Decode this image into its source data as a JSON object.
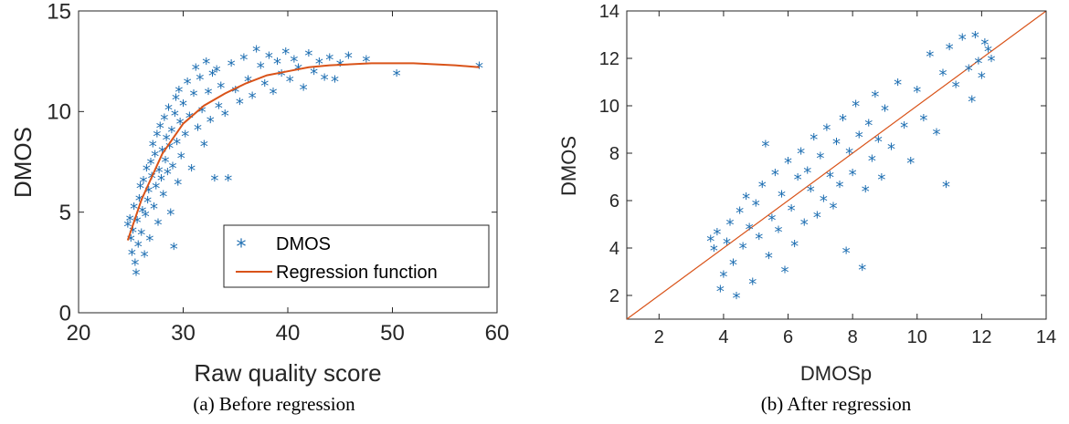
{
  "colors": {
    "marker": "#1f6fb2",
    "curve": "#d95319",
    "axis": "#262626"
  },
  "chart_data": [
    {
      "type": "scatter",
      "caption": "(a) Before regression",
      "xlabel": "Raw quality score",
      "ylabel": "DMOS",
      "xlim": [
        20,
        60
      ],
      "ylim": [
        0,
        15
      ],
      "xticks": [
        "20",
        "30",
        "40",
        "50",
        "60"
      ],
      "yticks": [
        "0",
        "5",
        "10",
        "15"
      ],
      "legend_position": "bottom-right",
      "legend": [
        {
          "label": "DMOS",
          "kind": "marker"
        },
        {
          "label": "Regression function",
          "kind": "line"
        }
      ],
      "series": [
        {
          "name": "DMOS",
          "marker": "asterisk",
          "points": [
            [
              24.7,
              4.3
            ],
            [
              24.9,
              4.6
            ],
            [
              25.0,
              3.6
            ],
            [
              25.1,
              2.9
            ],
            [
              25.2,
              4.0
            ],
            [
              25.3,
              5.2
            ],
            [
              25.4,
              2.4
            ],
            [
              25.5,
              1.9
            ],
            [
              25.6,
              4.5
            ],
            [
              25.7,
              3.3
            ],
            [
              25.8,
              5.6
            ],
            [
              25.9,
              6.2
            ],
            [
              26.0,
              3.9
            ],
            [
              26.1,
              5.0
            ],
            [
              26.2,
              6.5
            ],
            [
              26.3,
              2.8
            ],
            [
              26.4,
              4.8
            ],
            [
              26.5,
              7.1
            ],
            [
              26.6,
              5.5
            ],
            [
              26.7,
              6.0
            ],
            [
              26.8,
              3.6
            ],
            [
              26.9,
              7.4
            ],
            [
              27.0,
              6.7
            ],
            [
              27.1,
              8.3
            ],
            [
              27.2,
              5.2
            ],
            [
              27.3,
              7.8
            ],
            [
              27.4,
              6.2
            ],
            [
              27.5,
              8.8
            ],
            [
              27.6,
              4.4
            ],
            [
              27.7,
              7.0
            ],
            [
              27.8,
              9.2
            ],
            [
              27.9,
              6.6
            ],
            [
              28.0,
              8.0
            ],
            [
              28.1,
              5.8
            ],
            [
              28.2,
              9.6
            ],
            [
              28.3,
              7.5
            ],
            [
              28.4,
              8.6
            ],
            [
              28.5,
              6.9
            ],
            [
              28.6,
              10.1
            ],
            [
              28.7,
              8.2
            ],
            [
              28.8,
              4.9
            ],
            [
              28.9,
              9.0
            ],
            [
              29.0,
              7.2
            ],
            [
              29.1,
              3.2
            ],
            [
              29.2,
              9.8
            ],
            [
              29.3,
              10.6
            ],
            [
              29.4,
              8.4
            ],
            [
              29.5,
              6.4
            ],
            [
              29.6,
              11.0
            ],
            [
              29.7,
              9.4
            ],
            [
              29.8,
              7.7
            ],
            [
              30.0,
              10.3
            ],
            [
              30.2,
              8.8
            ],
            [
              30.4,
              11.4
            ],
            [
              30.6,
              9.7
            ],
            [
              30.8,
              7.1
            ],
            [
              31.0,
              10.8
            ],
            [
              31.2,
              12.1
            ],
            [
              31.4,
              9.1
            ],
            [
              31.6,
              11.6
            ],
            [
              31.8,
              10.0
            ],
            [
              32.0,
              8.3
            ],
            [
              32.2,
              12.4
            ],
            [
              32.4,
              10.9
            ],
            [
              32.6,
              9.5
            ],
            [
              32.8,
              11.8
            ],
            [
              33.0,
              6.6
            ],
            [
              33.2,
              12.0
            ],
            [
              33.4,
              10.2
            ],
            [
              33.6,
              11.2
            ],
            [
              34.0,
              9.8
            ],
            [
              34.3,
              6.6
            ],
            [
              34.6,
              12.3
            ],
            [
              35.0,
              11.0
            ],
            [
              35.4,
              10.4
            ],
            [
              35.8,
              12.6
            ],
            [
              36.2,
              11.5
            ],
            [
              36.6,
              10.7
            ],
            [
              37.0,
              13.0
            ],
            [
              37.4,
              12.2
            ],
            [
              37.8,
              11.3
            ],
            [
              38.2,
              12.7
            ],
            [
              38.6,
              10.9
            ],
            [
              39.0,
              12.4
            ],
            [
              39.4,
              11.8
            ],
            [
              39.8,
              12.9
            ],
            [
              40.2,
              11.5
            ],
            [
              40.6,
              12.5
            ],
            [
              41.0,
              12.1
            ],
            [
              41.5,
              11.1
            ],
            [
              42.0,
              12.8
            ],
            [
              42.5,
              11.9
            ],
            [
              43.0,
              12.4
            ],
            [
              43.5,
              11.6
            ],
            [
              44.0,
              12.6
            ],
            [
              44.5,
              11.5
            ],
            [
              45.0,
              12.3
            ],
            [
              45.8,
              12.7
            ],
            [
              47.5,
              12.5
            ],
            [
              50.4,
              11.8
            ],
            [
              58.3,
              12.2
            ]
          ]
        },
        {
          "name": "Regression function",
          "kind": "line",
          "points": [
            [
              24.7,
              3.6
            ],
            [
              26,
              5.6
            ],
            [
              28,
              7.9
            ],
            [
              30,
              9.4
            ],
            [
              32,
              10.3
            ],
            [
              34,
              10.9
            ],
            [
              36,
              11.4
            ],
            [
              38,
              11.8
            ],
            [
              40,
              12.0
            ],
            [
              42,
              12.2
            ],
            [
              44,
              12.3
            ],
            [
              46,
              12.35
            ],
            [
              48,
              12.4
            ],
            [
              50,
              12.4
            ],
            [
              52,
              12.4
            ],
            [
              54,
              12.35
            ],
            [
              56,
              12.3
            ],
            [
              58.3,
              12.2
            ]
          ]
        }
      ]
    },
    {
      "type": "scatter",
      "caption": "(b) After regression",
      "xlabel": "DMOSp",
      "ylabel": "DMOS",
      "xlim": [
        1,
        14
      ],
      "ylim": [
        1,
        14
      ],
      "xticks": [
        "2",
        "4",
        "6",
        "8",
        "10",
        "12",
        "14"
      ],
      "yticks": [
        "2",
        "4",
        "6",
        "8",
        "10",
        "12",
        "14"
      ],
      "series": [
        {
          "name": "DMOS",
          "marker": "asterisk",
          "points": [
            [
              3.6,
              4.3
            ],
            [
              3.7,
              3.9
            ],
            [
              3.8,
              4.6
            ],
            [
              3.9,
              2.2
            ],
            [
              4.0,
              2.8
            ],
            [
              4.1,
              4.2
            ],
            [
              4.2,
              5.0
            ],
            [
              4.3,
              3.3
            ],
            [
              4.4,
              1.9
            ],
            [
              4.5,
              5.5
            ],
            [
              4.6,
              4.0
            ],
            [
              4.7,
              6.1
            ],
            [
              4.8,
              4.8
            ],
            [
              4.9,
              2.5
            ],
            [
              5.0,
              5.8
            ],
            [
              5.1,
              4.4
            ],
            [
              5.2,
              6.6
            ],
            [
              5.3,
              8.3
            ],
            [
              5.4,
              3.6
            ],
            [
              5.5,
              5.2
            ],
            [
              5.6,
              7.1
            ],
            [
              5.7,
              4.7
            ],
            [
              5.8,
              6.2
            ],
            [
              5.9,
              3.0
            ],
            [
              6.0,
              7.6
            ],
            [
              6.1,
              5.6
            ],
            [
              6.2,
              4.1
            ],
            [
              6.3,
              6.9
            ],
            [
              6.4,
              8.0
            ],
            [
              6.5,
              5.0
            ],
            [
              6.6,
              7.2
            ],
            [
              6.7,
              6.4
            ],
            [
              6.8,
              8.6
            ],
            [
              6.9,
              5.3
            ],
            [
              7.0,
              7.8
            ],
            [
              7.1,
              6.0
            ],
            [
              7.2,
              9.0
            ],
            [
              7.3,
              7.0
            ],
            [
              7.4,
              5.7
            ],
            [
              7.5,
              8.4
            ],
            [
              7.6,
              6.6
            ],
            [
              7.7,
              9.4
            ],
            [
              7.8,
              3.8
            ],
            [
              7.9,
              8.0
            ],
            [
              8.0,
              7.1
            ],
            [
              8.1,
              10.0
            ],
            [
              8.2,
              8.7
            ],
            [
              8.3,
              3.1
            ],
            [
              8.4,
              6.4
            ],
            [
              8.5,
              9.2
            ],
            [
              8.6,
              7.7
            ],
            [
              8.7,
              10.4
            ],
            [
              8.8,
              8.5
            ],
            [
              8.9,
              6.9
            ],
            [
              9.0,
              9.8
            ],
            [
              9.2,
              8.2
            ],
            [
              9.4,
              10.9
            ],
            [
              9.6,
              9.1
            ],
            [
              9.8,
              7.6
            ],
            [
              10.0,
              10.6
            ],
            [
              10.2,
              9.4
            ],
            [
              10.4,
              12.1
            ],
            [
              10.6,
              8.8
            ],
            [
              10.8,
              11.3
            ],
            [
              10.9,
              6.6
            ],
            [
              11.0,
              12.4
            ],
            [
              11.2,
              10.8
            ],
            [
              11.4,
              12.8
            ],
            [
              11.6,
              11.5
            ],
            [
              11.7,
              10.2
            ],
            [
              11.8,
              12.9
            ],
            [
              11.9,
              11.8
            ],
            [
              12.0,
              11.2
            ],
            [
              12.1,
              12.6
            ],
            [
              12.2,
              12.3
            ],
            [
              12.3,
              11.9
            ]
          ]
        }
      ],
      "reference_line": {
        "x": [
          1,
          14
        ],
        "y": [
          1,
          14
        ]
      }
    }
  ]
}
